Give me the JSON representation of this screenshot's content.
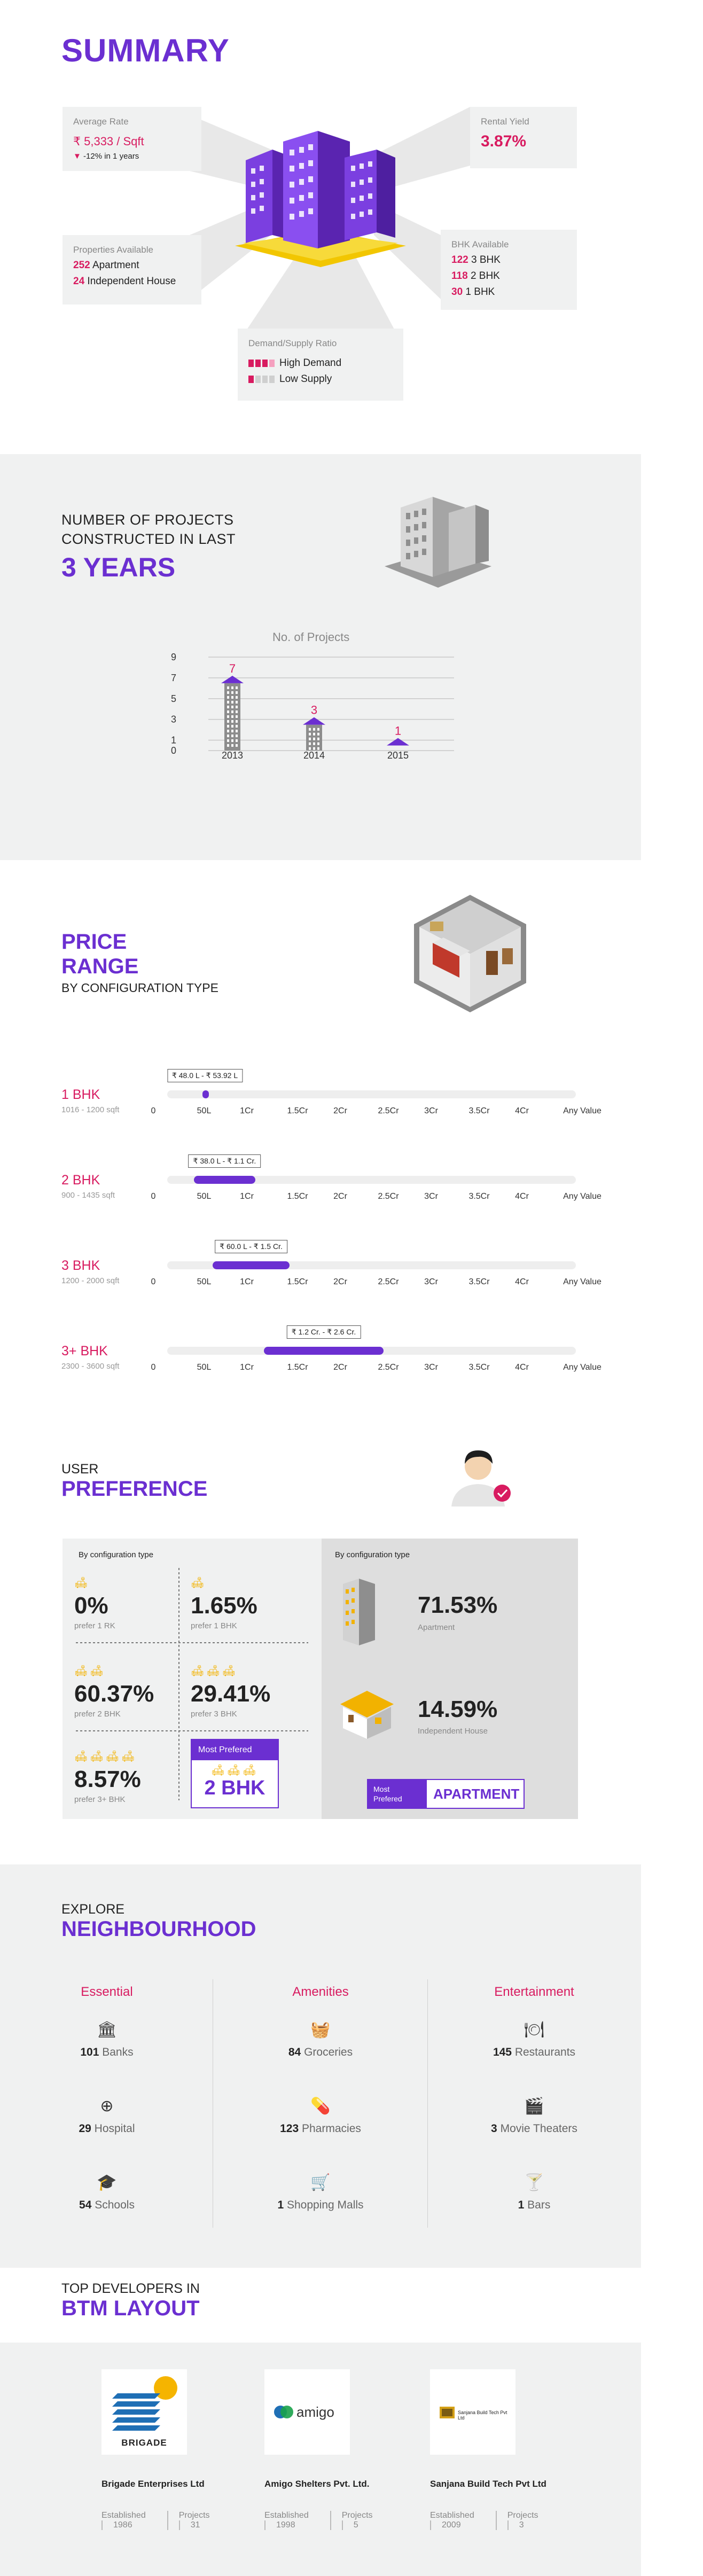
{
  "summary": {
    "title": "SUMMARY",
    "avg_rate": {
      "label": "Average Rate",
      "value": "₹ 5,333 / Sqft",
      "change": "-12% in 1 years"
    },
    "rental_yield": {
      "label": "Rental Yield",
      "value": "3.87%"
    },
    "properties": {
      "label": "Properties Available",
      "rows": [
        {
          "count": "252",
          "type": "Apartment"
        },
        {
          "count": "24",
          "type": "Independent House"
        }
      ]
    },
    "bhk": {
      "label": "BHK Available",
      "rows": [
        {
          "count": "122",
          "type": "3 BHK"
        },
        {
          "count": "118",
          "type": "2 BHK"
        },
        {
          "count": "30",
          "type": "1 BHK"
        }
      ]
    },
    "demand": {
      "label": "Demand/Supply Ratio",
      "rows": [
        "High Demand",
        "Low Supply"
      ],
      "levels": [
        3,
        1
      ]
    }
  },
  "projects": {
    "line1": "NUMBER OF PROJECTS",
    "line2": "CONSTRUCTED IN LAST",
    "line3": "3 YEARS",
    "chart_data": {
      "type": "bar",
      "title": "No. of Projects",
      "categories": [
        "2013",
        "2014",
        "2015"
      ],
      "values": [
        7,
        3,
        1
      ],
      "yticks": [
        "9",
        "7",
        "5",
        "3",
        "1",
        "0"
      ],
      "ylim": [
        0,
        9
      ],
      "grid": true
    }
  },
  "price": {
    "title1": "PRICE",
    "title2": "RANGE",
    "subtitle": "BY CONFIGURATION TYPE",
    "axis": [
      "0",
      "50L",
      "1Cr",
      "1.5Cr",
      "2Cr",
      "2.5Cr",
      "3Cr",
      "3.5Cr",
      "4Cr",
      "Any Value"
    ],
    "rows": [
      {
        "label": "1 BHK",
        "area": "1016 - 1200 sqft",
        "range": "₹ 48.0 L - ₹ 53.92 L",
        "min_cr": 0.48,
        "max_cr": 0.5392
      },
      {
        "label": "2 BHK",
        "area": "900 - 1435 sqft",
        "range": "₹ 38.0 L - ₹ 1.1 Cr.",
        "min_cr": 0.38,
        "max_cr": 1.1
      },
      {
        "label": "3 BHK",
        "area": "1200 - 2000 sqft",
        "range": "₹ 60.0 L - ₹ 1.5 Cr.",
        "min_cr": 0.6,
        "max_cr": 1.5
      },
      {
        "label": "3+ BHK",
        "area": "2300 - 3600 sqft",
        "range": "₹ 1.2 Cr. - ₹ 2.6 Cr.",
        "min_cr": 1.2,
        "max_cr": 2.6
      }
    ]
  },
  "preference": {
    "title1": "USER",
    "title2": "PREFERENCE",
    "left_header": "By configuration type",
    "right_header": "By configuration type",
    "config": [
      {
        "value": "0%",
        "label": "prefer 1 RK",
        "sofas": 1
      },
      {
        "value": "1.65%",
        "label": "prefer 1 BHK",
        "sofas": 1
      },
      {
        "value": "60.37%",
        "label": "prefer 2 BHK",
        "sofas": 2
      },
      {
        "value": "29.41%",
        "label": "prefer 3 BHK",
        "sofas": 3
      },
      {
        "value": "8.57%",
        "label": "prefer 3+ BHK",
        "sofas": 4
      }
    ],
    "most_preferred": {
      "label": "Most Prefered",
      "value": "2 BHK"
    },
    "types": [
      {
        "value": "71.53%",
        "label": "Apartment"
      },
      {
        "value": "14.59%",
        "label": "Independent House"
      }
    ],
    "most_preferred_type": {
      "label1": "Most",
      "label2": "Prefered",
      "value": "APARTMENT"
    }
  },
  "neighbourhood": {
    "title1": "EXPLORE",
    "title2": "NEIGHBOURHOOD",
    "columns": [
      {
        "title": "Essential",
        "items": [
          {
            "count": "101",
            "label": "Banks",
            "icon": "bank-icon"
          },
          {
            "count": "29",
            "label": "Hospital",
            "icon": "hospital-icon"
          },
          {
            "count": "54",
            "label": "Schools",
            "icon": "school-icon"
          }
        ]
      },
      {
        "title": "Amenities",
        "items": [
          {
            "count": "84",
            "label": "Groceries",
            "icon": "grocery-icon"
          },
          {
            "count": "123",
            "label": "Pharmacies",
            "icon": "pill-icon"
          },
          {
            "count": "1",
            "label": "Shopping Malls",
            "icon": "cart-icon"
          }
        ]
      },
      {
        "title": "Entertainment",
        "items": [
          {
            "count": "145",
            "label": "Restaurants",
            "icon": "restaurant-icon"
          },
          {
            "count": "3",
            "label": "Movie Theaters",
            "icon": "movie-icon"
          },
          {
            "count": "1",
            "label": "Bars",
            "icon": "cocktail-icon"
          }
        ]
      }
    ]
  },
  "developers": {
    "title1": "TOP DEVELOPERS IN",
    "title2": "BTM LAYOUT",
    "established_label": "Established",
    "projects_label": "Projects",
    "list": [
      {
        "name": "Brigade Enterprises Ltd",
        "logo_text": "BRIGADE",
        "established": "1986",
        "projects": "31"
      },
      {
        "name": "Amigo Shelters Pvt. Ltd.",
        "logo_text": "amigo",
        "established": "1998",
        "projects": "5"
      },
      {
        "name": "Sanjana Build Tech Pvt Ltd",
        "logo_text": "Sanjana Build Tech Pvt Ltd",
        "established": "2009",
        "projects": "3"
      }
    ]
  },
  "colors": {
    "purple": "#6b2fd1",
    "pink": "#d81b60",
    "gold": "#f2b200",
    "panel": "#f0f1f1"
  }
}
